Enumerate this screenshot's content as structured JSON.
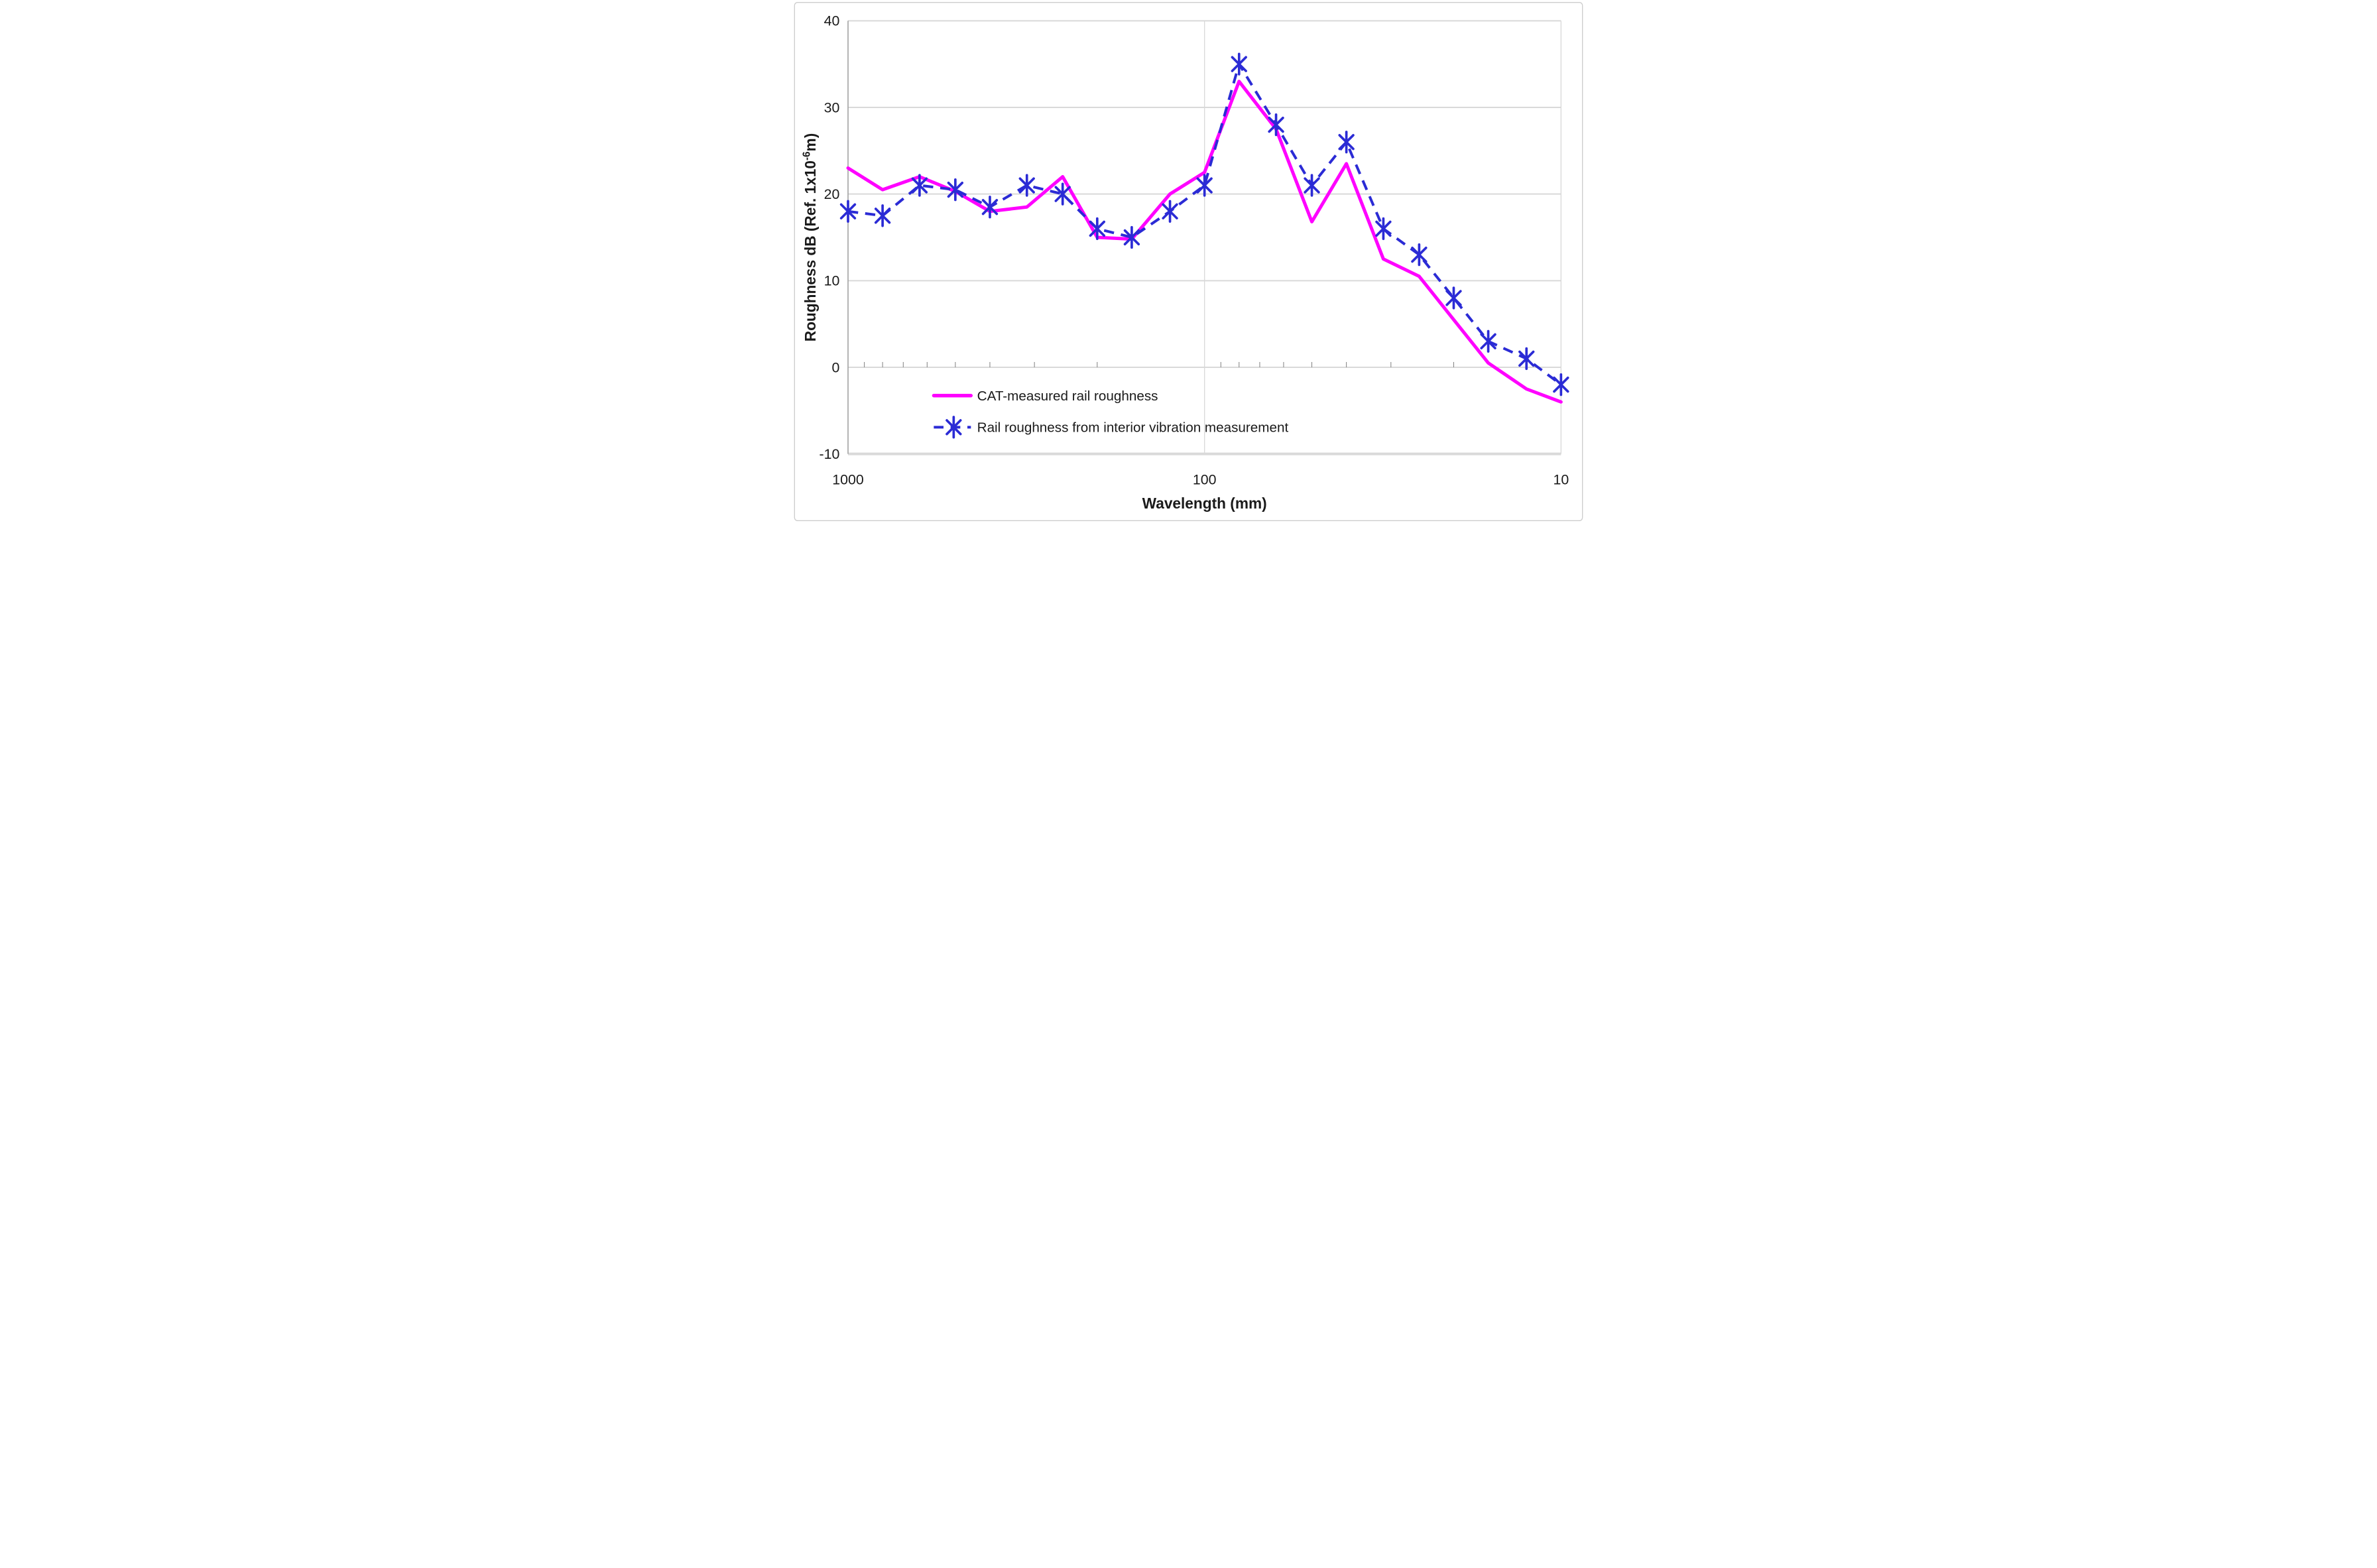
{
  "figure": {
    "background": "#FFFFFF",
    "border_color": "#CDCDCD",
    "plot_border_left_color": "#A6A6A6",
    "gridline_color": "#D9D9D9",
    "tick_mark_color": "#7F7F7F",
    "text_color": "#1A1A1A"
  },
  "chart_data": {
    "type": "line",
    "title": "",
    "xlabel": "Wavelength (mm)",
    "ylabel_parts": [
      "Roughness dB (Ref. 1x10",
      "-6",
      "m)"
    ],
    "x_scale": "log10_reversed",
    "xlim": [
      1000,
      10
    ],
    "ylim": [
      -10,
      40
    ],
    "xticks": [
      1000,
      100,
      10
    ],
    "yticks": [
      40,
      30,
      20,
      10,
      0,
      -10
    ],
    "x_minor_tick_mantissas": [
      9,
      8,
      7,
      6,
      5,
      4,
      3,
      2
    ],
    "grid": "horizontal major + vertical decade lines, minor ticks on zero axis",
    "legend_position": "inside bottom-left",
    "x": [
      1000,
      800,
      630,
      500,
      400,
      315,
      250,
      200,
      160,
      125,
      100,
      80,
      63,
      50,
      40,
      31.5,
      25,
      20,
      16,
      12.5,
      10
    ],
    "series": [
      {
        "name": "CAT-measured rail roughness",
        "color": "#FF00FF",
        "line_style": "solid",
        "marker": "none",
        "values": [
          23,
          20.5,
          22,
          20.3,
          18,
          18.5,
          22,
          15,
          14.8,
          20,
          22.5,
          33,
          27.5,
          16.8,
          23.5,
          12.5,
          10.5,
          5.5,
          0.5,
          -2.5,
          -4
        ]
      },
      {
        "name": "Rail roughness from interior vibration measurement",
        "color": "#2B2BD5",
        "line_style": "dashed",
        "marker": "asterisk",
        "values": [
          18,
          17.5,
          21,
          20.5,
          18.5,
          21,
          20,
          16,
          15,
          18,
          21,
          35,
          28,
          21,
          26,
          16,
          13,
          8,
          3,
          1,
          -2
        ]
      }
    ]
  }
}
